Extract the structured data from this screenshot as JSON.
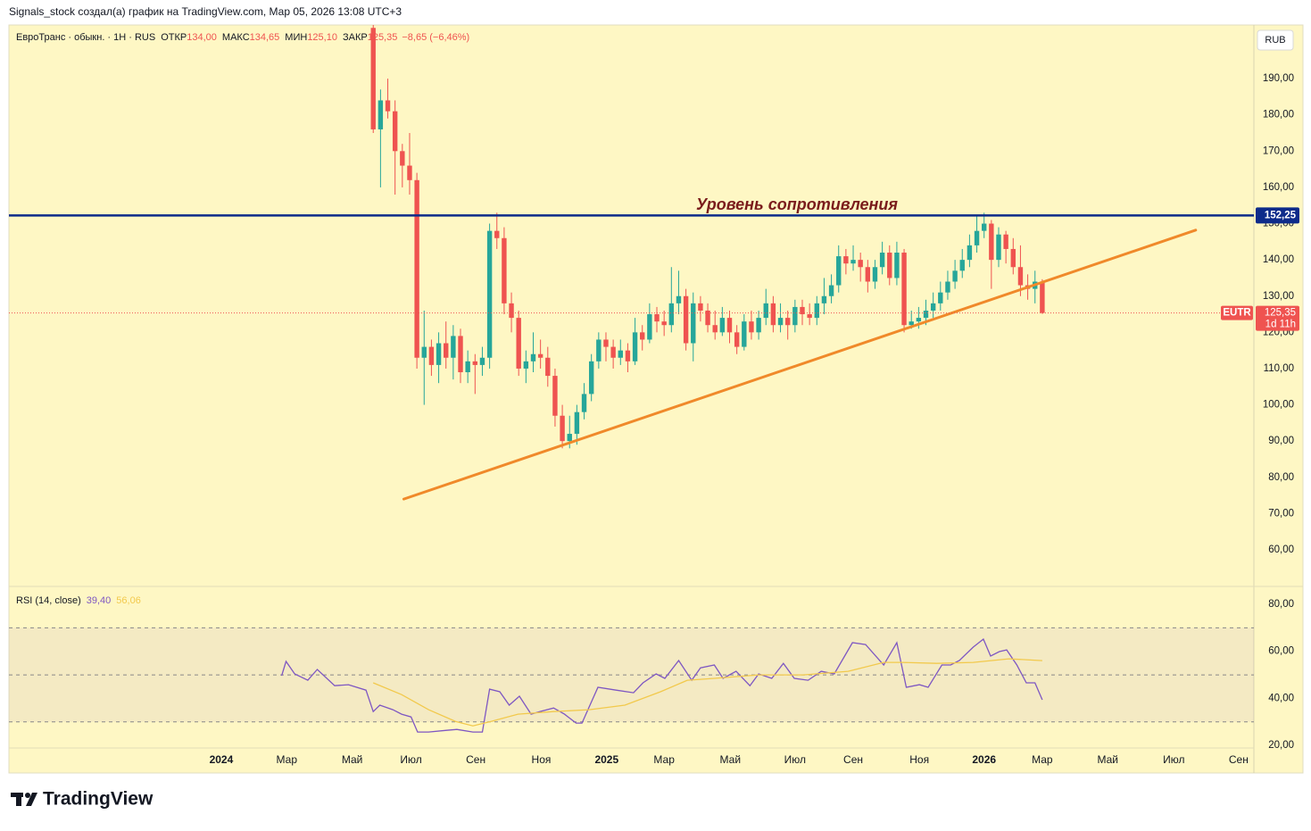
{
  "header": {
    "attribution": "Signals_stock создал(а) график на TradingView.com, Мар 05, 2026 13:08 UTC+3"
  },
  "brand": "TradingView",
  "time_axis": {
    "xlim": [
      -50.1,
      121.1
    ],
    "xticks": [
      {
        "value": -20.9,
        "label": "2024",
        "bold": true
      },
      {
        "value": -11.9,
        "label": "Мар"
      },
      {
        "value": -2.9,
        "label": "Май"
      },
      {
        "value": 5.2,
        "label": "Июл"
      },
      {
        "value": 14.1,
        "label": "Сен"
      },
      {
        "value": 23.1,
        "label": "Ноя"
      },
      {
        "value": 32.1,
        "label": "2025",
        "bold": true
      },
      {
        "value": 40.0,
        "label": "Мар"
      },
      {
        "value": 49.1,
        "label": "Май"
      },
      {
        "value": 58.0,
        "label": "Июл"
      },
      {
        "value": 66.0,
        "label": "Сен"
      },
      {
        "value": 75.1,
        "label": "Ноя"
      },
      {
        "value": 84.0,
        "label": "2026",
        "bold": true
      },
      {
        "value": 92.0,
        "label": "Мар"
      },
      {
        "value": 101.0,
        "label": "Май"
      },
      {
        "value": 110.1,
        "label": "Июл"
      },
      {
        "value": 119.0,
        "label": "Сен"
      }
    ]
  },
  "chart_data": [
    {
      "type": "candlestick",
      "legend": {
        "symbol": "ЕвроТранс · обыкн. · 1Н · RUS",
        "fields": [
          {
            "name": "ОТКР",
            "value": "134,00"
          },
          {
            "name": "МАКС",
            "value": "134,65"
          },
          {
            "name": "МИН",
            "value": "125,10"
          },
          {
            "name": "ЗАКР",
            "value": "125,35"
          }
        ],
        "change": "−8,65 (−6,46%)"
      },
      "currency": "RUB",
      "up_color": "#26a69a",
      "down_color": "#ef5350",
      "ylim": [
        49.9,
        204.8
      ],
      "yticks": [
        {
          "value": 60,
          "label": "60,00"
        },
        {
          "value": 70,
          "label": "70,00"
        },
        {
          "value": 80,
          "label": "80,00"
        },
        {
          "value": 90,
          "label": "90,00"
        },
        {
          "value": 100,
          "label": "100,00"
        },
        {
          "value": 110,
          "label": "110,00"
        },
        {
          "value": 120,
          "label": "120,00"
        },
        {
          "value": 130,
          "label": "130,00"
        },
        {
          "value": 140,
          "label": "140,00"
        },
        {
          "value": 150,
          "label": "150,00"
        },
        {
          "value": 160,
          "label": "160,00"
        },
        {
          "value": 170,
          "label": "170,00"
        },
        {
          "value": 180,
          "label": "180,00"
        },
        {
          "value": 190,
          "label": "190,00"
        }
      ],
      "grid": false,
      "open": [
        204,
        176,
        184,
        181,
        170,
        166,
        162,
        113,
        116,
        111,
        117,
        113,
        119,
        109,
        112,
        111,
        113,
        148,
        146,
        128,
        124,
        110,
        112,
        114,
        113,
        108,
        97,
        90,
        92,
        98,
        103,
        112,
        118,
        116,
        113,
        115,
        112,
        120,
        118,
        125,
        123,
        122,
        128,
        130,
        117,
        128,
        126,
        122,
        120,
        124,
        120,
        116,
        123,
        120,
        124,
        128,
        122,
        124,
        122,
        127,
        125,
        124,
        128,
        130,
        133,
        141,
        139,
        140,
        138,
        134,
        138,
        142,
        135,
        142,
        122,
        123,
        124,
        126,
        128,
        131,
        134,
        137,
        140,
        144,
        148,
        150,
        140,
        147,
        143,
        138,
        133,
        132,
        134
      ],
      "high": [
        212,
        187,
        190,
        184,
        172,
        175,
        164,
        126,
        118,
        120,
        123,
        122,
        121,
        115,
        114,
        116,
        150,
        153,
        149,
        131,
        126,
        115,
        120,
        118,
        116,
        110,
        100,
        97,
        100,
        106,
        114,
        120,
        120,
        118,
        118,
        117,
        124,
        122,
        128,
        127,
        126,
        138,
        137,
        132,
        131,
        130,
        128,
        126,
        127,
        126,
        122,
        125,
        126,
        126,
        132,
        130,
        128,
        126,
        129,
        129,
        128,
        130,
        135,
        136,
        144,
        143,
        144,
        142,
        140,
        140,
        145,
        144,
        145,
        143,
        126,
        127,
        129,
        131,
        134,
        137,
        140,
        143,
        147,
        152,
        153,
        151,
        149,
        148,
        146,
        144,
        136,
        137,
        134.65
      ],
      "low": [
        175,
        160,
        179,
        158,
        160,
        158,
        110,
        100,
        108,
        106,
        110,
        107,
        106,
        106,
        103,
        108,
        110,
        143,
        125,
        120,
        108,
        106,
        109,
        110,
        105,
        94,
        88,
        88,
        89,
        96,
        101,
        110,
        112,
        110,
        111,
        109,
        111,
        115,
        117,
        120,
        119,
        120,
        125,
        115,
        112,
        123,
        120,
        118,
        119,
        117,
        114,
        115,
        118,
        118,
        122,
        120,
        120,
        118,
        120,
        122,
        122,
        122,
        125,
        128,
        131,
        136,
        137,
        134,
        131,
        132,
        136,
        133,
        133,
        120,
        121,
        121,
        122,
        124,
        126,
        129,
        132,
        135,
        138,
        142,
        146,
        132,
        138,
        139,
        136,
        130,
        129,
        128,
        125.1
      ],
      "close": [
        176,
        184,
        181,
        170,
        166,
        162,
        113,
        116,
        111,
        117,
        113,
        119,
        109,
        112,
        111,
        113,
        148,
        146,
        128,
        124,
        110,
        112,
        114,
        113,
        108,
        97,
        90,
        92,
        98,
        103,
        112,
        118,
        116,
        113,
        115,
        112,
        120,
        118,
        125,
        123,
        122,
        128,
        130,
        117,
        128,
        126,
        122,
        120,
        124,
        120,
        116,
        123,
        120,
        124,
        128,
        122,
        124,
        122,
        127,
        125,
        124,
        128,
        130,
        133,
        141,
        139,
        140,
        138,
        134,
        138,
        142,
        135,
        142,
        122,
        123,
        124,
        126,
        128,
        131,
        134,
        137,
        140,
        144,
        148,
        150,
        140,
        147,
        143,
        138,
        133,
        132,
        134,
        125.35
      ],
      "resistance": {
        "value": 152.25,
        "label": "152,25",
        "text": "Уровень сопротивления",
        "color": "#0d2b8a"
      },
      "trendline": {
        "x": [
          4.2,
          113.1
        ],
        "y": [
          74.0,
          148.2
        ],
        "color": "#f0892a"
      },
      "last_price": {
        "value": 125.35,
        "label": "125,35",
        "symbol": "EUTR",
        "countdown": "1d 11h"
      }
    },
    {
      "type": "line",
      "title": "RSI (14, close)",
      "ylim": [
        18.9,
        87.6
      ],
      "yticks": [
        {
          "value": 20,
          "label": "20,00"
        },
        {
          "value": 40,
          "label": "40,00"
        },
        {
          "value": 60,
          "label": "60,00"
        },
        {
          "value": 80,
          "label": "80,00"
        }
      ],
      "bands": {
        "upper": 70,
        "middle": 50,
        "lower": 30
      },
      "series": [
        {
          "color": "#7e57c2",
          "last_label": "39,40",
          "x": [
            -12.6,
            -12.0,
            -10.8,
            -9.0,
            -7.7,
            -5.3,
            -3.4,
            -1.0,
            0,
            0.9,
            2.7,
            3.9,
            5.2,
            6.1,
            7.6,
            10.1,
            11.5,
            13.7,
            15.0,
            16.0,
            17.4,
            18.7,
            20.1,
            21.7,
            22.9,
            24.8,
            26.3,
            27.9,
            28.7,
            30.9,
            33.4,
            35.8,
            37.1,
            38.9,
            40.1,
            42.0,
            43.8,
            45.0,
            46.9,
            48.1,
            49.9,
            51.8,
            53.0,
            54.8,
            56.4,
            57.9,
            59.8,
            61.6,
            63.4,
            65.9,
            67.7,
            70.2,
            72.0,
            73.3,
            75.1,
            76.3,
            78.2,
            79.4,
            80.6,
            82.5,
            83.9,
            84.9,
            86.1,
            87.1,
            88.5,
            89.8,
            91.0,
            92.0
          ],
          "values": [
            49.6,
            55.7,
            50.4,
            47.7,
            52.3,
            45.4,
            45.8,
            43.5,
            34.4,
            37.1,
            35.2,
            33.3,
            32.1,
            25.7,
            25.7,
            26.4,
            26.8,
            25.7,
            25.7,
            43.9,
            42.8,
            37.1,
            40.9,
            33.3,
            34.4,
            35.9,
            33.3,
            29.5,
            29.5,
            44.7,
            43.5,
            42.4,
            46.6,
            50.4,
            48.5,
            56.1,
            47.7,
            53.0,
            54.2,
            48.5,
            51.5,
            45.4,
            50.4,
            48.5,
            54.9,
            48.5,
            47.7,
            51.5,
            50.4,
            63.7,
            62.9,
            54.2,
            63.7,
            44.7,
            45.8,
            44.7,
            54.2,
            54.2,
            56.1,
            61.8,
            65.2,
            58.0,
            59.9,
            60.6,
            54.2,
            46.6,
            46.6,
            39.4
          ]
        },
        {
          "color": "#f2c94c",
          "last_label": "56,06",
          "x": [
            0,
            3.9,
            7.6,
            11.3,
            13.7,
            16.2,
            19.9,
            24.8,
            29.7,
            34.6,
            39.5,
            43.2,
            46.9,
            53.0,
            59.1,
            65.3,
            70.2,
            72.6,
            77.5,
            82.5,
            87.4,
            92.0
          ],
          "values": [
            46.6,
            41.6,
            35.2,
            30.2,
            28.3,
            30.2,
            33.3,
            34.4,
            35.2,
            37.1,
            42.8,
            47.7,
            48.5,
            50.0,
            50.0,
            51.5,
            55.3,
            55.3,
            54.9,
            55.3,
            56.8,
            56.06
          ]
        }
      ]
    }
  ]
}
